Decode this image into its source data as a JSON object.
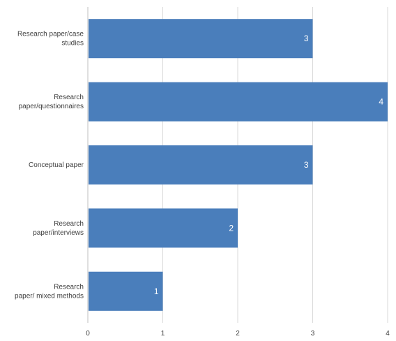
{
  "chart_data": {
    "type": "bar",
    "orientation": "horizontal",
    "title": "",
    "xlabel": "",
    "ylabel": "",
    "categories": [
      [
        "Research paper/case",
        "studies"
      ],
      [
        "Research",
        "paper/questionnaires"
      ],
      [
        "Conceptual paper"
      ],
      [
        "Research",
        "paper/interviews"
      ],
      [
        "Research",
        "paper/ mixed methods"
      ]
    ],
    "values": [
      3,
      4,
      3,
      2,
      1
    ],
    "data_labels": [
      "3",
      "4",
      "3",
      "2",
      "1"
    ],
    "xlim": [
      0,
      4
    ],
    "xticks": [
      "0",
      "1",
      "2",
      "3",
      "4"
    ],
    "grid": true,
    "legend": "none",
    "bar_color": "#4a7ebb"
  }
}
